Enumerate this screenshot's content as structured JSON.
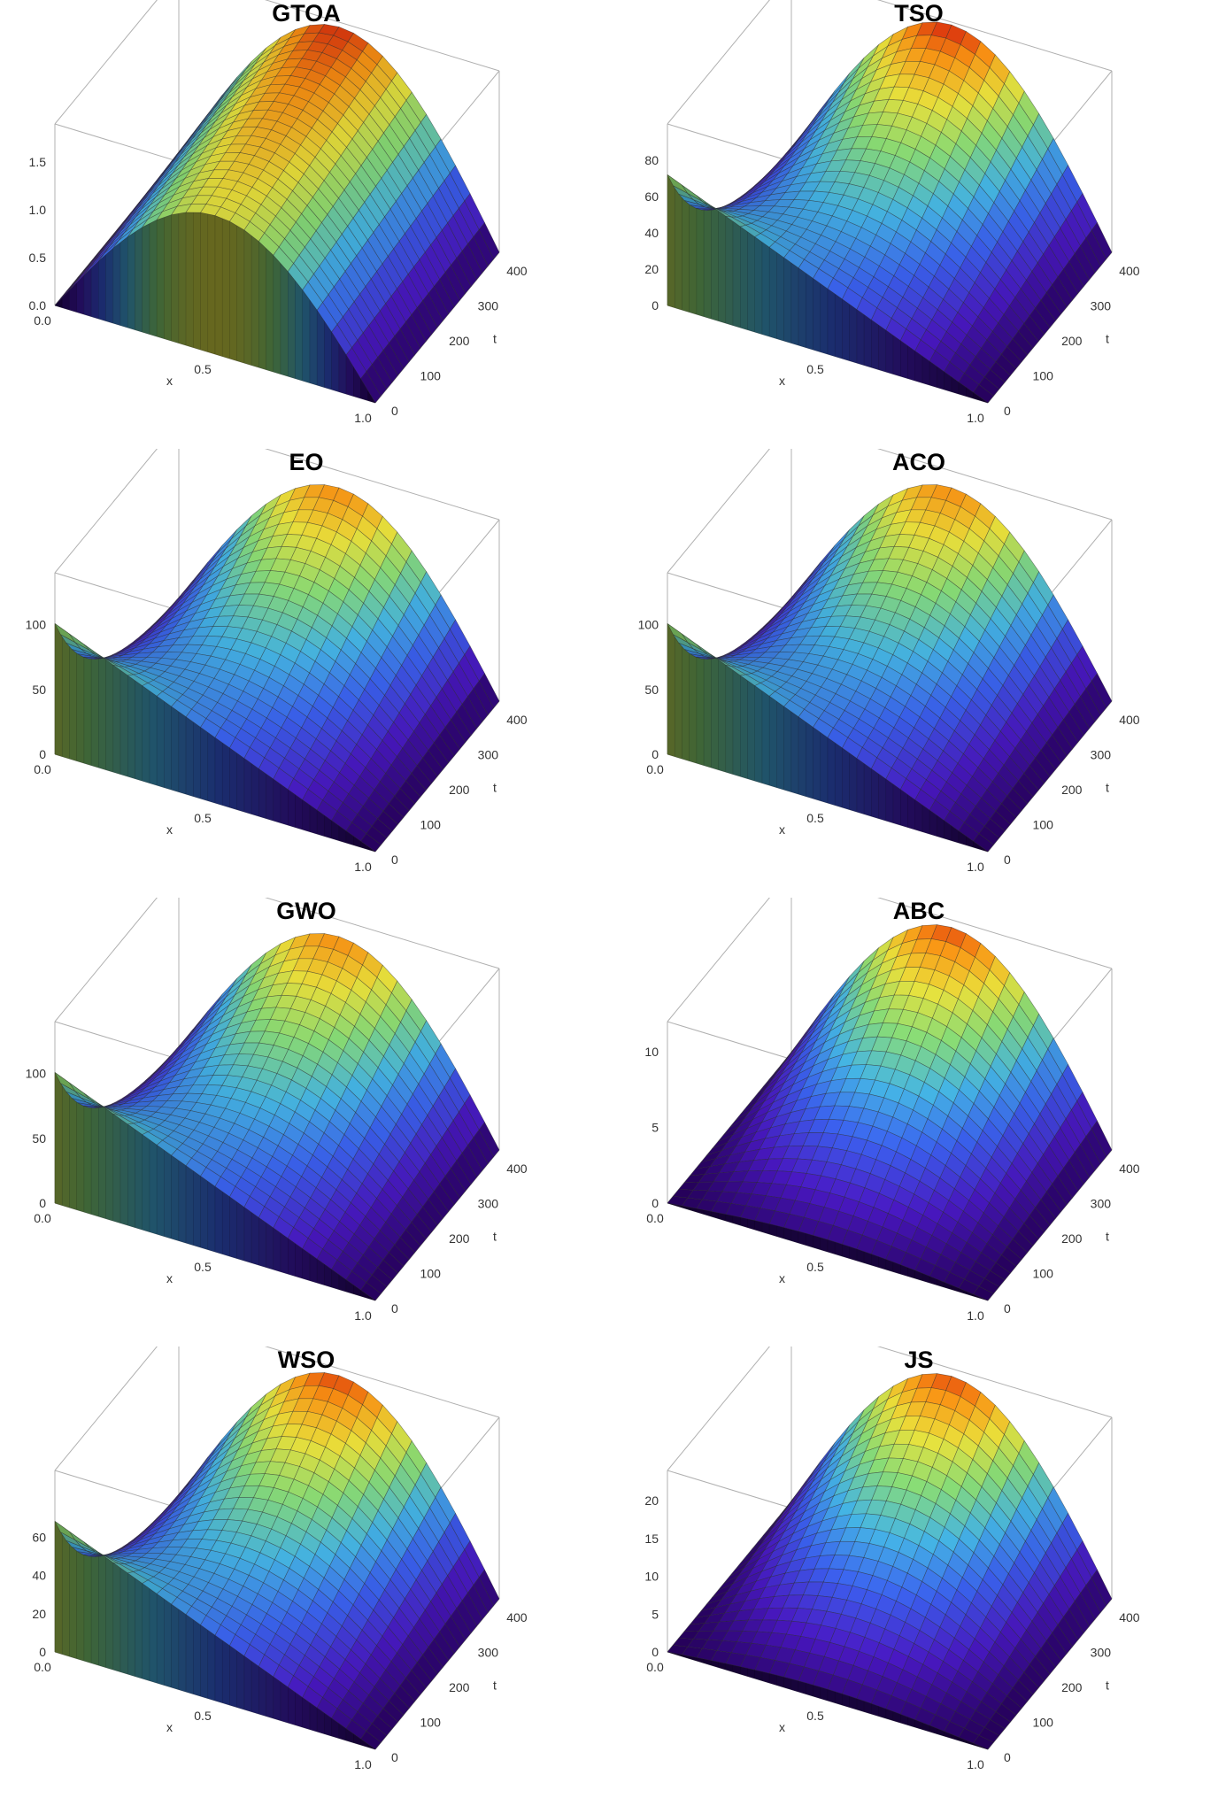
{
  "chart_data": [
    {
      "type": "surface3d",
      "title": "GTOA",
      "xlabel": "x",
      "ylabel": "t",
      "xlim": [
        0,
        1
      ],
      "tlim": [
        0,
        430
      ],
      "x_ticks": [
        "0.0",
        "0.5",
        "1.0"
      ],
      "t_ticks": [
        "0",
        "100",
        "200",
        "300",
        "400"
      ],
      "z_ticks": [
        "0.0",
        "0.5",
        "1.0",
        "1.5"
      ],
      "zlim": [
        0,
        1.9
      ],
      "initial_peak": 1.45,
      "final_peak": 1.85,
      "initial_spikes": false,
      "max_color": "#d40000"
    },
    {
      "type": "surface3d",
      "title": "TSO",
      "xlabel": "x",
      "ylabel": "t",
      "xlim": [
        0,
        1
      ],
      "tlim": [
        0,
        430
      ],
      "x_ticks": [
        "0.5",
        "1.0"
      ],
      "t_ticks": [
        "0",
        "100",
        "200",
        "300",
        "400"
      ],
      "z_ticks": [
        "0",
        "20",
        "40",
        "60",
        "80"
      ],
      "zlim": [
        0,
        100
      ],
      "initial_peak": 0,
      "final_peak": 97,
      "initial_spikes": true,
      "max_color": "#e03800"
    },
    {
      "type": "surface3d",
      "title": "EO",
      "xlabel": "x",
      "ylabel": "t",
      "xlim": [
        0,
        1
      ],
      "tlim": [
        0,
        430
      ],
      "x_ticks": [
        "0.0",
        "0.5",
        "1.0"
      ],
      "t_ticks": [
        "0",
        "100",
        "200",
        "300",
        "400"
      ],
      "z_ticks": [
        "0",
        "50",
        "100"
      ],
      "zlim": [
        0,
        140
      ],
      "initial_peak": 0,
      "final_peak": 125,
      "initial_spikes": true,
      "max_color": "#ff8c00"
    },
    {
      "type": "surface3d",
      "title": "ACO",
      "xlabel": "x",
      "ylabel": "t",
      "xlim": [
        0,
        1
      ],
      "tlim": [
        0,
        430
      ],
      "x_ticks": [
        "0.0",
        "0.5",
        "1.0"
      ],
      "t_ticks": [
        "0",
        "100",
        "200",
        "300",
        "400"
      ],
      "z_ticks": [
        "0",
        "50",
        "100"
      ],
      "zlim": [
        0,
        140
      ],
      "initial_peak": 0,
      "final_peak": 125,
      "initial_spikes": true,
      "max_color": "#ff8c00"
    },
    {
      "type": "surface3d",
      "title": "GWO",
      "xlabel": "x",
      "ylabel": "t",
      "xlim": [
        0,
        1
      ],
      "tlim": [
        0,
        430
      ],
      "x_ticks": [
        "0.0",
        "0.5",
        "1.0"
      ],
      "t_ticks": [
        "0",
        "100",
        "200",
        "300",
        "400"
      ],
      "z_ticks": [
        "0",
        "50",
        "100"
      ],
      "zlim": [
        0,
        140
      ],
      "initial_peak": 0,
      "final_peak": 125,
      "initial_spikes": true,
      "max_color": "#ff8c00"
    },
    {
      "type": "surface3d",
      "title": "ABC",
      "xlabel": "x",
      "ylabel": "t",
      "xlim": [
        0,
        1
      ],
      "tlim": [
        0,
        430
      ],
      "x_ticks": [
        "0.0",
        "0.5",
        "1.0"
      ],
      "t_ticks": [
        "0",
        "100",
        "200",
        "300",
        "400"
      ],
      "z_ticks": [
        "0",
        "5",
        "10"
      ],
      "zlim": [
        0,
        12
      ],
      "initial_peak": 0.8,
      "final_peak": 11.5,
      "initial_spikes": false,
      "max_color": "#e03800"
    },
    {
      "type": "surface3d",
      "title": "WSO",
      "xlabel": "x",
      "ylabel": "t",
      "xlim": [
        0,
        1
      ],
      "tlim": [
        0,
        430
      ],
      "x_ticks": [
        "0.0",
        "0.5",
        "1.0"
      ],
      "t_ticks": [
        "0",
        "100",
        "200",
        "300",
        "400"
      ],
      "z_ticks": [
        "0",
        "20",
        "40",
        "60"
      ],
      "zlim": [
        0,
        95
      ],
      "initial_peak": 0,
      "final_peak": 90,
      "initial_spikes": true,
      "max_color": "#ff8c00"
    },
    {
      "type": "surface3d",
      "title": "JS",
      "xlabel": "x",
      "ylabel": "t",
      "xlim": [
        0,
        1
      ],
      "tlim": [
        0,
        430
      ],
      "x_ticks": [
        "0.0",
        "0.5",
        "1.0"
      ],
      "t_ticks": [
        "0",
        "100",
        "200",
        "300",
        "400"
      ],
      "z_ticks": [
        "0",
        "5",
        "10",
        "15",
        "20"
      ],
      "zlim": [
        0,
        24
      ],
      "initial_peak": 1.5,
      "final_peak": 23,
      "initial_spikes": false,
      "max_color": "#e03800"
    }
  ]
}
